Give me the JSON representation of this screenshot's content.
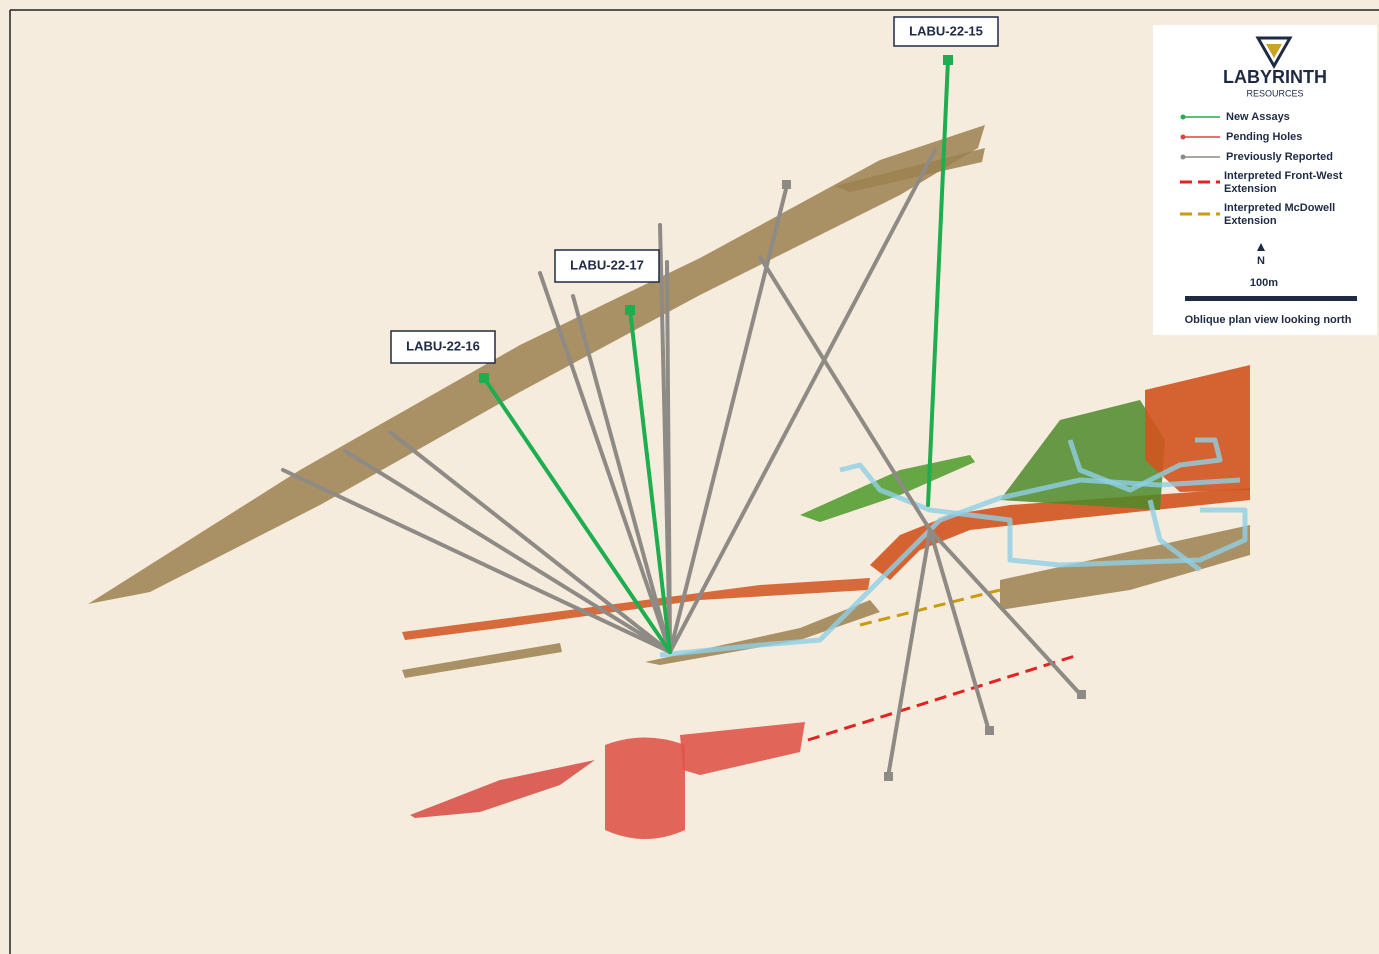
{
  "hole_labels": [
    "LABU-22-15",
    "LABU-22-17",
    "LABU-22-16"
  ],
  "legend": {
    "brand": "LABYRINTH",
    "brand_sub": "RESOURCES",
    "items": [
      "New Assays",
      "Pending Holes",
      "Previously Reported",
      "Interpreted Front-West Extension",
      "Interpreted McDowell Extension"
    ],
    "north": "N",
    "scale": "100m",
    "caption": "Oblique plan view looking north"
  }
}
